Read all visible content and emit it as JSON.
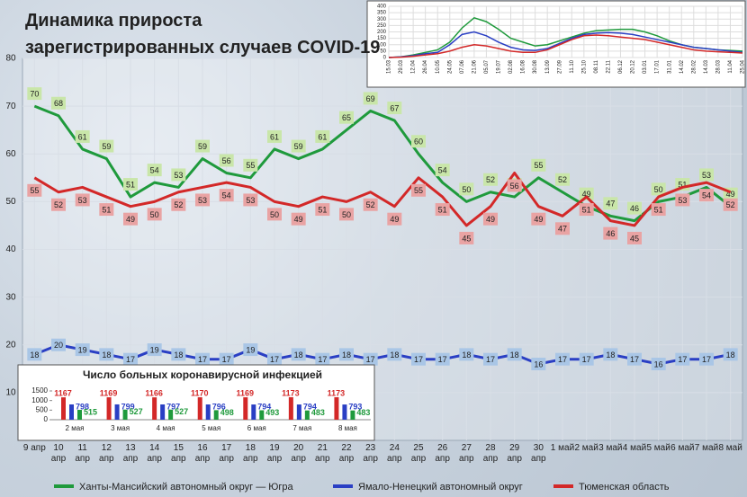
{
  "chart_data": [
    {
      "type": "line",
      "title": "Динамика прироста\nзарегистрированных случаев COVID-19",
      "categories": [
        "9 апр",
        "10\nапр",
        "11\nапр",
        "12\nапр",
        "13\nапр",
        "14\nапр",
        "15\nапр",
        "16\nапр",
        "17\nапр",
        "18\nапр",
        "19\nапр",
        "20\nапр",
        "21\nапр",
        "22\nапр",
        "23\nапр",
        "24\nапр",
        "25\nапр",
        "26\nапр",
        "27\nапр",
        "28\nапр",
        "29\nапр",
        "30\nапр",
        "1 май",
        "2 май",
        "3 май",
        "4 май",
        "5 май",
        "6 май",
        "7 май",
        "8 май"
      ],
      "series": [
        {
          "name": "Ханты-Мансийский автономный округ — Югра",
          "color": "#1f9a3c",
          "label_color": "#c9e6a9",
          "values": [
            70,
            68,
            61,
            59,
            51,
            54,
            53,
            59,
            56,
            55,
            61,
            59,
            61,
            65,
            69,
            67,
            60,
            54,
            50,
            52,
            51,
            55,
            52,
            49,
            47,
            46,
            50,
            51,
            53,
            49
          ]
        },
        {
          "name": "Ямало-Ненецкий автономный округ",
          "color": "#2a3fc4",
          "label_color": "#a9c6e6",
          "values": [
            18,
            20,
            19,
            18,
            17,
            19,
            18,
            17,
            17,
            19,
            17,
            18,
            17,
            18,
            17,
            18,
            17,
            17,
            18,
            17,
            18,
            16,
            17,
            17,
            18,
            17,
            16,
            17,
            17,
            18
          ]
        },
        {
          "name": "Тюменская область",
          "color": "#d32828",
          "label_color": "#e9a3a3",
          "values": [
            55,
            52,
            53,
            51,
            49,
            50,
            52,
            53,
            54,
            53,
            50,
            49,
            51,
            50,
            52,
            49,
            55,
            51,
            45,
            49,
            56,
            49,
            47,
            51,
            46,
            45,
            51,
            53,
            54,
            52
          ]
        }
      ],
      "ylim": [
        0,
        80
      ],
      "yticks": [
        10,
        20,
        30,
        40,
        50,
        60,
        70,
        80
      ],
      "grid": true,
      "legend": "bottom"
    },
    {
      "type": "line",
      "categories": [
        "15.03",
        "29.03",
        "12.04",
        "26.04",
        "10.05",
        "24.05",
        "07.06",
        "21.06",
        "05.07",
        "19.07",
        "02.08",
        "16.08",
        "30.08",
        "13.09",
        "27.09",
        "11.10",
        "25.10",
        "08.11",
        "22.11",
        "06.12",
        "20.12",
        "03.01",
        "17.01",
        "31.01",
        "14.02",
        "28.02",
        "14.03",
        "28.03",
        "11.04",
        "25.04"
      ],
      "series": [
        {
          "color": "#1f9a3c",
          "values": [
            0,
            5,
            20,
            40,
            60,
            120,
            230,
            310,
            280,
            220,
            150,
            120,
            90,
            100,
            130,
            160,
            190,
            210,
            215,
            220,
            220,
            200,
            170,
            130,
            100,
            80,
            70,
            60,
            55,
            50
          ]
        },
        {
          "color": "#2a3fc4",
          "values": [
            0,
            5,
            15,
            30,
            40,
            100,
            180,
            200,
            170,
            120,
            80,
            60,
            55,
            70,
            110,
            150,
            180,
            190,
            195,
            190,
            180,
            160,
            140,
            120,
            100,
            80,
            70,
            60,
            50,
            40
          ]
        },
        {
          "color": "#d32828",
          "values": [
            0,
            3,
            10,
            20,
            30,
            50,
            80,
            100,
            90,
            70,
            50,
            40,
            40,
            60,
            100,
            140,
            170,
            175,
            170,
            160,
            150,
            140,
            120,
            100,
            80,
            60,
            50,
            45,
            40,
            35
          ]
        }
      ],
      "ylim": [
        0,
        400
      ],
      "yticks": [
        0,
        50,
        100,
        150,
        200,
        250,
        300,
        350,
        400
      ],
      "grid": true
    },
    {
      "type": "bar",
      "title": "Число больных коронавирусной инфекцией",
      "categories": [
        "2 мая",
        "3 мая",
        "4 мая",
        "5 мая",
        "6 мая",
        "7 мая",
        "8 мая"
      ],
      "series": [
        {
          "color": "#d32828",
          "values": [
            1167,
            1169,
            1166,
            1170,
            1169,
            1173,
            1173
          ]
        },
        {
          "color": "#2a3fc4",
          "values": [
            798,
            799,
            797,
            796,
            794,
            794,
            793
          ]
        },
        {
          "color": "#1f9a3c",
          "values": [
            515,
            527,
            527,
            498,
            493,
            483,
            483
          ]
        }
      ],
      "ylim": [
        0,
        1500
      ],
      "yticks": [
        0,
        500,
        1000,
        1500
      ]
    }
  ]
}
